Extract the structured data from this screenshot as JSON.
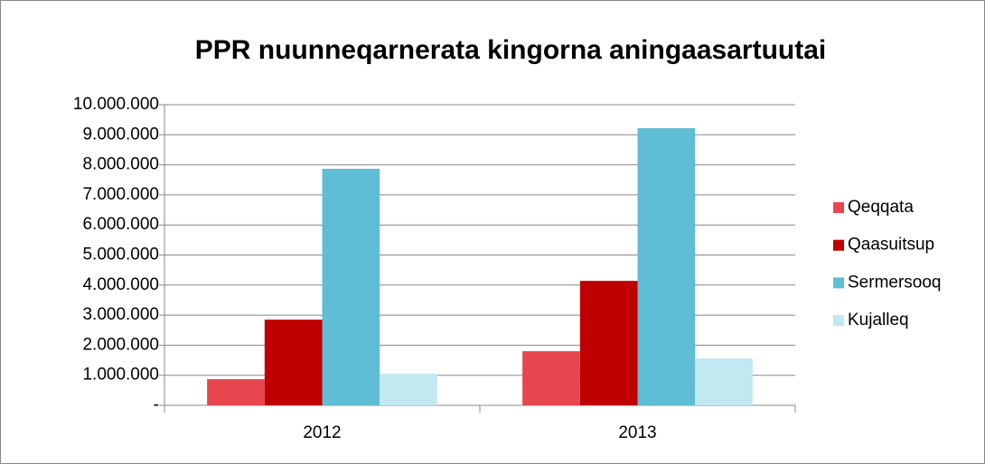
{
  "chart_data": {
    "type": "bar",
    "title": "PPR nuunneqarnerata kingorna aningaasartuutai",
    "categories": [
      "2012",
      "2013"
    ],
    "series": [
      {
        "name": "Qeqqata",
        "color": "#e8464f",
        "values": [
          870000,
          1800000
        ]
      },
      {
        "name": "Qaasuitsup",
        "color": "#c00000",
        "values": [
          2850000,
          4140000
        ]
      },
      {
        "name": "Sermersooq",
        "color": "#5fbdd5",
        "values": [
          7870000,
          9220000
        ]
      },
      {
        "name": "Kujalleq",
        "color": "#c2e8f2",
        "values": [
          1050000,
          1560000
        ]
      }
    ],
    "ylim": [
      0,
      10000000
    ],
    "yticks": [
      {
        "value": 0,
        "label": "-"
      },
      {
        "value": 1000000,
        "label": "1.000.000"
      },
      {
        "value": 2000000,
        "label": "2.000.000"
      },
      {
        "value": 3000000,
        "label": "3.000.000"
      },
      {
        "value": 4000000,
        "label": "4.000.000"
      },
      {
        "value": 5000000,
        "label": "5.000.000"
      },
      {
        "value": 6000000,
        "label": "6.000.000"
      },
      {
        "value": 7000000,
        "label": "7.000.000"
      },
      {
        "value": 8000000,
        "label": "8.000.000"
      },
      {
        "value": 9000000,
        "label": "9.000.000"
      },
      {
        "value": 10000000,
        "label": "10.000.000"
      }
    ],
    "grid": true,
    "legend": "right"
  }
}
